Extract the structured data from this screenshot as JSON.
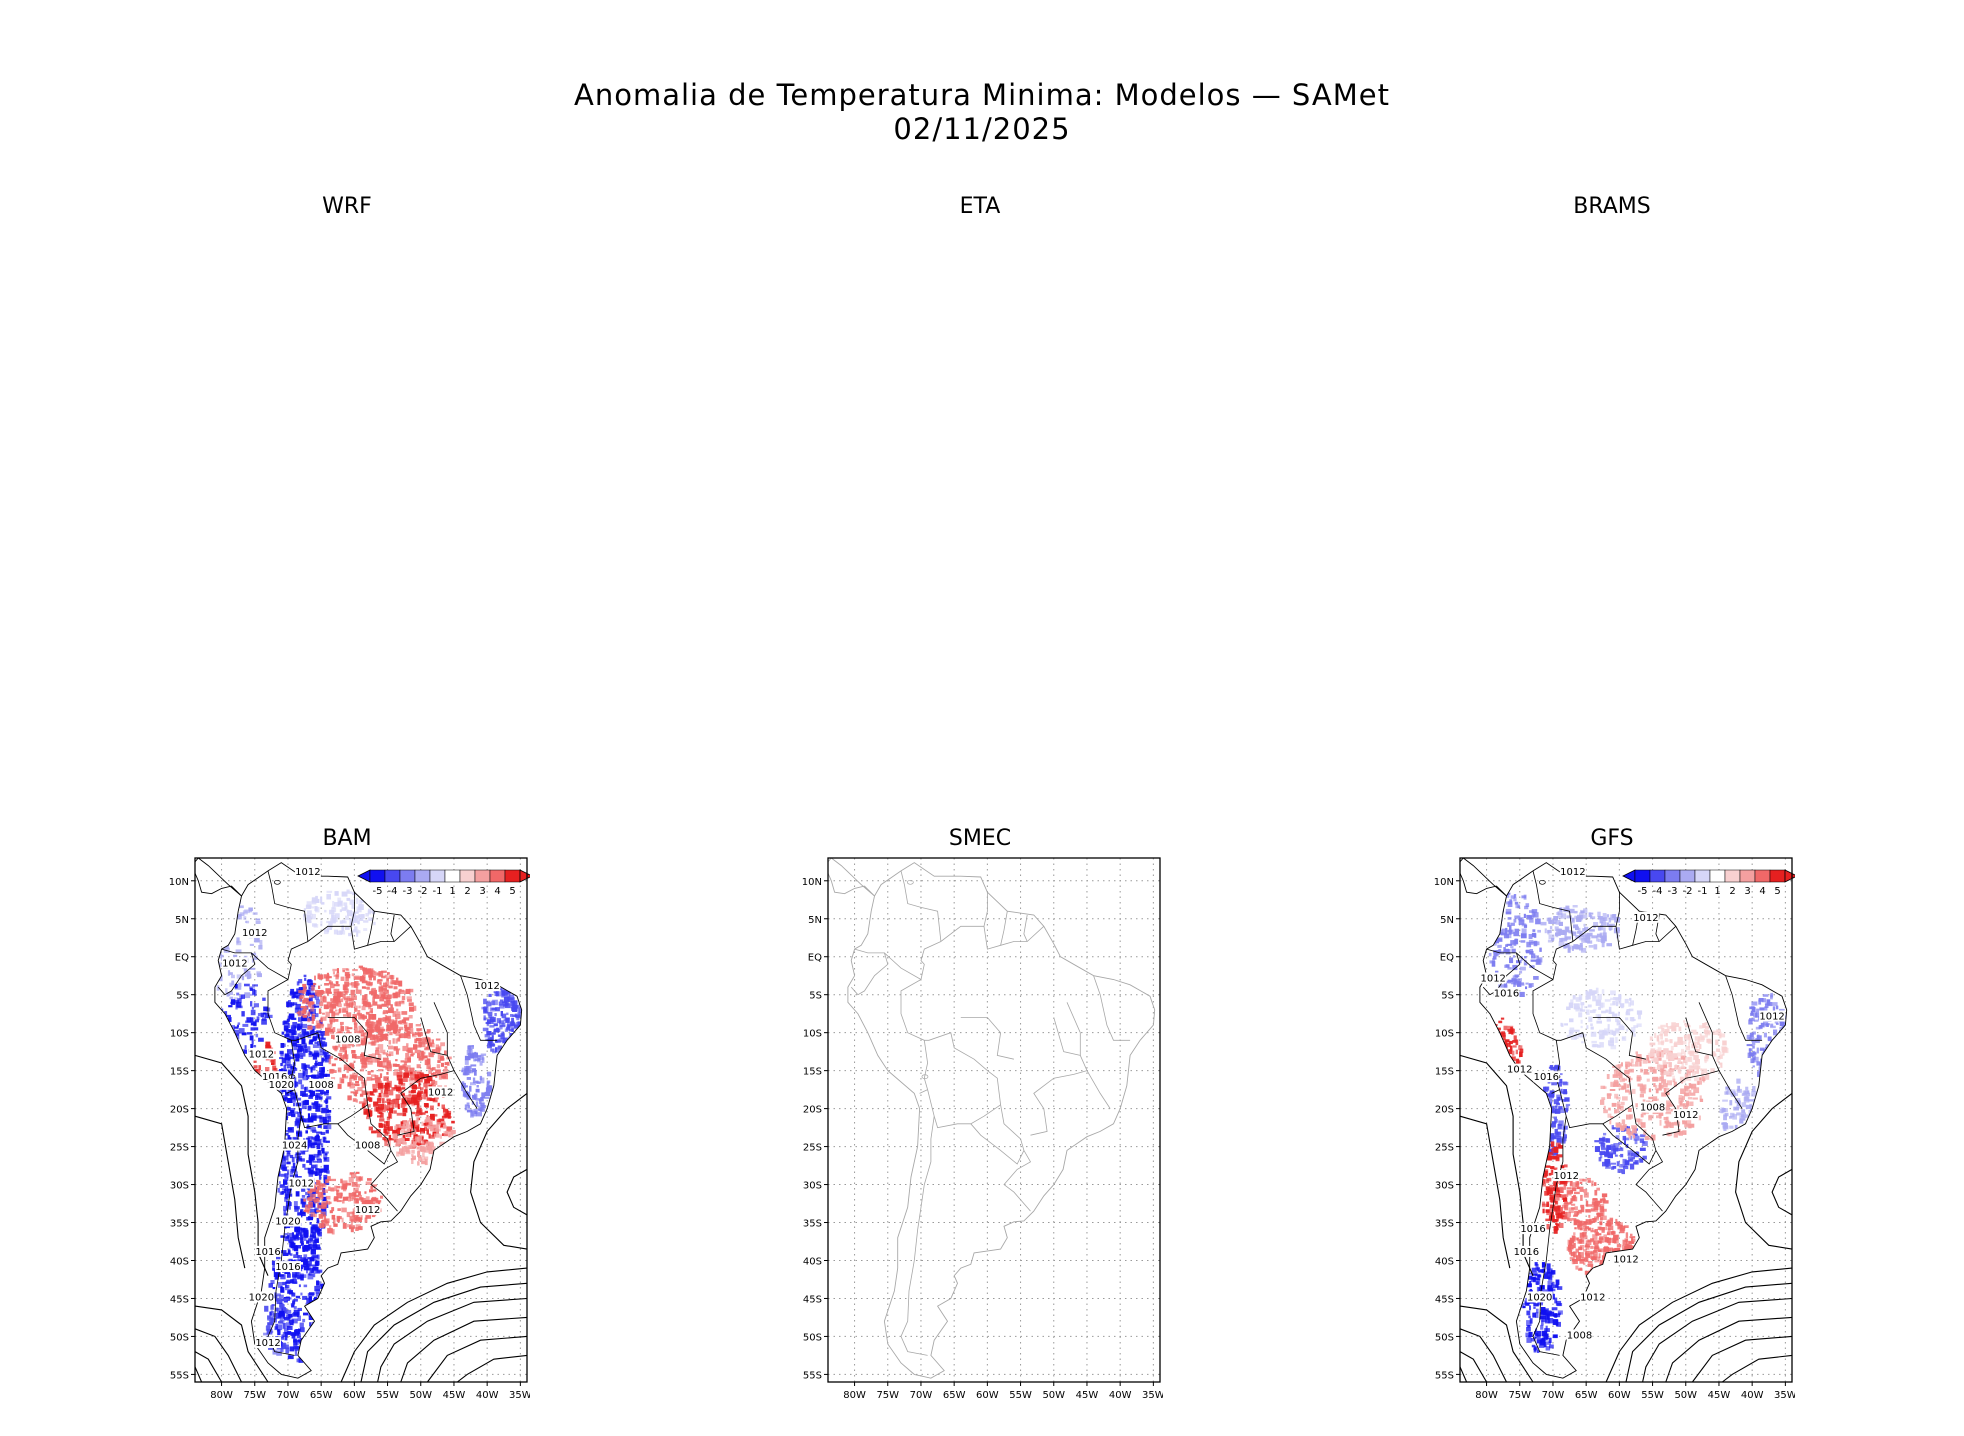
{
  "figure": {
    "title_line1": "Anomalia de Temperatura Minima: Modelos — SAMet",
    "title_line2": "02/11/2025"
  },
  "axes": {
    "lat_labels": [
      "10N",
      "5N",
      "EQ",
      "5S",
      "10S",
      "15S",
      "20S",
      "25S",
      "30S",
      "35S",
      "40S",
      "45S",
      "50S",
      "55S"
    ],
    "lon_labels": [
      "80W",
      "75W",
      "70W",
      "65W",
      "60W",
      "55W",
      "50W",
      "45W",
      "40W",
      "35W"
    ]
  },
  "colorbar": {
    "labels": [
      "-5",
      "-4",
      "-3",
      "-2",
      "-1",
      "1",
      "2",
      "3",
      "4",
      "5"
    ],
    "colors": [
      "#1010f0",
      "#4848f0",
      "#7c7cf0",
      "#aaaaf2",
      "#d6d6f8",
      "#ffffff",
      "#f8d0d0",
      "#f4a0a0",
      "#f06868",
      "#e62020"
    ]
  },
  "panels": {
    "wrf": {
      "title": "WRF"
    },
    "eta": {
      "title": "ETA"
    },
    "brams": {
      "title": "BRAMS"
    },
    "bam": {
      "title": "BAM",
      "contour_labels": [
        "1012",
        "1012",
        "1012",
        "1012",
        "1008",
        "1012",
        "1012",
        "1016",
        "1020",
        "1008",
        "1024",
        "1008",
        "1012",
        "1012",
        "1020",
        "1016",
        "1016",
        "1020",
        "1012"
      ]
    },
    "smec": {
      "title": "SMEC"
    },
    "gfs": {
      "title": "GFS",
      "contour_labels": [
        "1012",
        "1012",
        "1012",
        "1016",
        "1012",
        "1012",
        "1016",
        "1008",
        "1012",
        "1012",
        "1016",
        "1016",
        "1012",
        "1020",
        "1012",
        "1008"
      ]
    }
  }
}
